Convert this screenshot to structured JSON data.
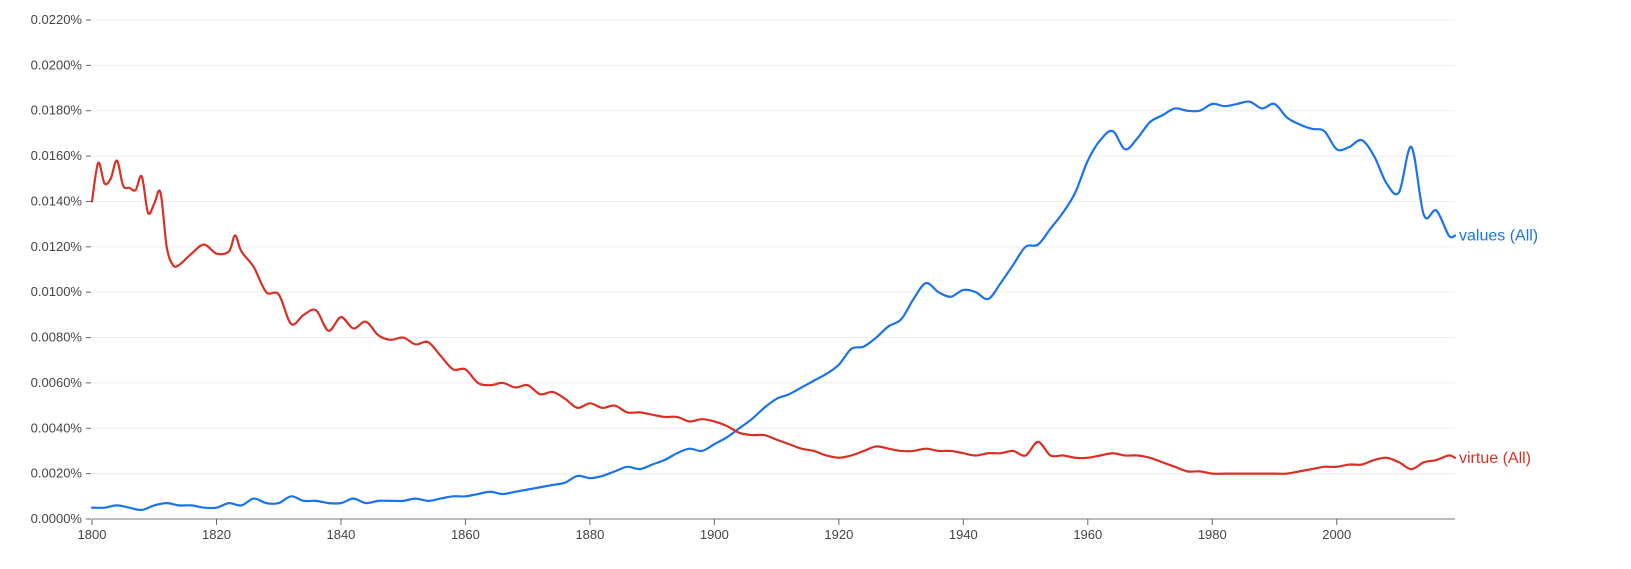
{
  "chart_data": {
    "type": "line",
    "title": "",
    "xlabel": "",
    "ylabel": "",
    "x_ticks": [
      1800,
      1820,
      1840,
      1860,
      1880,
      1900,
      1920,
      1940,
      1960,
      1980,
      2000
    ],
    "y_ticks": [
      "0.0000%",
      "0.0020%",
      "0.0040%",
      "0.0060%",
      "0.0080%",
      "0.0100%",
      "0.0120%",
      "0.0140%",
      "0.0160%",
      "0.0180%",
      "0.0200%",
      "0.0220%"
    ],
    "xlim": [
      1800,
      2019
    ],
    "ylim": [
      0,
      0.022
    ],
    "grid": true,
    "legend": "inline labels at line ends",
    "series": [
      {
        "name": "values (All)",
        "color": "#1a73e8",
        "points": [
          [
            1800,
            0.0005
          ],
          [
            1802,
            0.0005
          ],
          [
            1804,
            0.0006
          ],
          [
            1806,
            0.0005
          ],
          [
            1808,
            0.0004
          ],
          [
            1810,
            0.0006
          ],
          [
            1812,
            0.0007
          ],
          [
            1814,
            0.0006
          ],
          [
            1816,
            0.0006
          ],
          [
            1818,
            0.0005
          ],
          [
            1820,
            0.0005
          ],
          [
            1822,
            0.0007
          ],
          [
            1824,
            0.0006
          ],
          [
            1826,
            0.0009
          ],
          [
            1828,
            0.0007
          ],
          [
            1830,
            0.0007
          ],
          [
            1832,
            0.001
          ],
          [
            1834,
            0.0008
          ],
          [
            1836,
            0.0008
          ],
          [
            1838,
            0.0007
          ],
          [
            1840,
            0.0007
          ],
          [
            1842,
            0.0009
          ],
          [
            1844,
            0.0007
          ],
          [
            1846,
            0.0008
          ],
          [
            1848,
            0.0008
          ],
          [
            1850,
            0.0008
          ],
          [
            1852,
            0.0009
          ],
          [
            1854,
            0.0008
          ],
          [
            1856,
            0.0009
          ],
          [
            1858,
            0.001
          ],
          [
            1860,
            0.001
          ],
          [
            1862,
            0.0011
          ],
          [
            1864,
            0.0012
          ],
          [
            1866,
            0.0011
          ],
          [
            1868,
            0.0012
          ],
          [
            1870,
            0.0013
          ],
          [
            1872,
            0.0014
          ],
          [
            1874,
            0.0015
          ],
          [
            1876,
            0.0016
          ],
          [
            1878,
            0.0019
          ],
          [
            1880,
            0.0018
          ],
          [
            1882,
            0.0019
          ],
          [
            1884,
            0.0021
          ],
          [
            1886,
            0.0023
          ],
          [
            1888,
            0.0022
          ],
          [
            1890,
            0.0024
          ],
          [
            1892,
            0.0026
          ],
          [
            1894,
            0.0029
          ],
          [
            1896,
            0.0031
          ],
          [
            1898,
            0.003
          ],
          [
            1900,
            0.0033
          ],
          [
            1902,
            0.0036
          ],
          [
            1904,
            0.004
          ],
          [
            1906,
            0.0044
          ],
          [
            1908,
            0.0049
          ],
          [
            1910,
            0.0053
          ],
          [
            1912,
            0.0055
          ],
          [
            1914,
            0.0058
          ],
          [
            1916,
            0.0061
          ],
          [
            1918,
            0.0064
          ],
          [
            1920,
            0.0068
          ],
          [
            1922,
            0.0075
          ],
          [
            1924,
            0.0076
          ],
          [
            1926,
            0.008
          ],
          [
            1928,
            0.0085
          ],
          [
            1930,
            0.0088
          ],
          [
            1932,
            0.0097
          ],
          [
            1934,
            0.0104
          ],
          [
            1936,
            0.01
          ],
          [
            1938,
            0.0098
          ],
          [
            1940,
            0.0101
          ],
          [
            1942,
            0.01
          ],
          [
            1944,
            0.0097
          ],
          [
            1946,
            0.0104
          ],
          [
            1948,
            0.0112
          ],
          [
            1950,
            0.012
          ],
          [
            1952,
            0.0121
          ],
          [
            1954,
            0.0128
          ],
          [
            1956,
            0.0135
          ],
          [
            1958,
            0.0144
          ],
          [
            1960,
            0.0158
          ],
          [
            1962,
            0.0167
          ],
          [
            1964,
            0.0171
          ],
          [
            1966,
            0.0163
          ],
          [
            1968,
            0.0168
          ],
          [
            1970,
            0.0175
          ],
          [
            1972,
            0.0178
          ],
          [
            1974,
            0.0181
          ],
          [
            1976,
            0.018
          ],
          [
            1978,
            0.018
          ],
          [
            1980,
            0.0183
          ],
          [
            1982,
            0.0182
          ],
          [
            1984,
            0.0183
          ],
          [
            1986,
            0.0184
          ],
          [
            1988,
            0.0181
          ],
          [
            1990,
            0.0183
          ],
          [
            1992,
            0.0177
          ],
          [
            1994,
            0.0174
          ],
          [
            1996,
            0.0172
          ],
          [
            1998,
            0.0171
          ],
          [
            2000,
            0.0163
          ],
          [
            2002,
            0.0164
          ],
          [
            2004,
            0.0167
          ],
          [
            2006,
            0.016
          ],
          [
            2008,
            0.0148
          ],
          [
            2010,
            0.0144
          ],
          [
            2012,
            0.0164
          ],
          [
            2014,
            0.0134
          ],
          [
            2016,
            0.0136
          ],
          [
            2018,
            0.0125
          ],
          [
            2019,
            0.0125
          ]
        ]
      },
      {
        "name": "virtue (All)",
        "color": "#d93025",
        "points": [
          [
            1800,
            0.014
          ],
          [
            1801,
            0.0157
          ],
          [
            1802,
            0.0148
          ],
          [
            1803,
            0.015
          ],
          [
            1804,
            0.0158
          ],
          [
            1805,
            0.0147
          ],
          [
            1806,
            0.0146
          ],
          [
            1807,
            0.0145
          ],
          [
            1808,
            0.0151
          ],
          [
            1809,
            0.0135
          ],
          [
            1810,
            0.0139
          ],
          [
            1811,
            0.0144
          ],
          [
            1812,
            0.012
          ],
          [
            1813,
            0.0112
          ],
          [
            1814,
            0.0112
          ],
          [
            1816,
            0.0117
          ],
          [
            1818,
            0.0121
          ],
          [
            1820,
            0.0117
          ],
          [
            1822,
            0.0118
          ],
          [
            1823,
            0.0125
          ],
          [
            1824,
            0.0118
          ],
          [
            1826,
            0.0111
          ],
          [
            1828,
            0.01
          ],
          [
            1830,
            0.0099
          ],
          [
            1832,
            0.0086
          ],
          [
            1834,
            0.009
          ],
          [
            1836,
            0.0092
          ],
          [
            1838,
            0.0083
          ],
          [
            1840,
            0.0089
          ],
          [
            1842,
            0.0084
          ],
          [
            1844,
            0.0087
          ],
          [
            1846,
            0.0081
          ],
          [
            1848,
            0.0079
          ],
          [
            1850,
            0.008
          ],
          [
            1852,
            0.0077
          ],
          [
            1854,
            0.0078
          ],
          [
            1856,
            0.0072
          ],
          [
            1858,
            0.0066
          ],
          [
            1860,
            0.0066
          ],
          [
            1862,
            0.006
          ],
          [
            1864,
            0.0059
          ],
          [
            1866,
            0.006
          ],
          [
            1868,
            0.0058
          ],
          [
            1870,
            0.0059
          ],
          [
            1872,
            0.0055
          ],
          [
            1874,
            0.0056
          ],
          [
            1876,
            0.0053
          ],
          [
            1878,
            0.0049
          ],
          [
            1880,
            0.0051
          ],
          [
            1882,
            0.0049
          ],
          [
            1884,
            0.005
          ],
          [
            1886,
            0.0047
          ],
          [
            1888,
            0.0047
          ],
          [
            1890,
            0.0046
          ],
          [
            1892,
            0.0045
          ],
          [
            1894,
            0.0045
          ],
          [
            1896,
            0.0043
          ],
          [
            1898,
            0.0044
          ],
          [
            1900,
            0.0043
          ],
          [
            1902,
            0.0041
          ],
          [
            1904,
            0.0038
          ],
          [
            1906,
            0.0037
          ],
          [
            1908,
            0.0037
          ],
          [
            1910,
            0.0035
          ],
          [
            1912,
            0.0033
          ],
          [
            1914,
            0.0031
          ],
          [
            1916,
            0.003
          ],
          [
            1918,
            0.0028
          ],
          [
            1920,
            0.0027
          ],
          [
            1922,
            0.0028
          ],
          [
            1924,
            0.003
          ],
          [
            1926,
            0.0032
          ],
          [
            1928,
            0.0031
          ],
          [
            1930,
            0.003
          ],
          [
            1932,
            0.003
          ],
          [
            1934,
            0.0031
          ],
          [
            1936,
            0.003
          ],
          [
            1938,
            0.003
          ],
          [
            1940,
            0.0029
          ],
          [
            1942,
            0.0028
          ],
          [
            1944,
            0.0029
          ],
          [
            1946,
            0.0029
          ],
          [
            1948,
            0.003
          ],
          [
            1950,
            0.0028
          ],
          [
            1952,
            0.0034
          ],
          [
            1954,
            0.0028
          ],
          [
            1956,
            0.0028
          ],
          [
            1958,
            0.0027
          ],
          [
            1960,
            0.0027
          ],
          [
            1962,
            0.0028
          ],
          [
            1964,
            0.0029
          ],
          [
            1966,
            0.0028
          ],
          [
            1968,
            0.0028
          ],
          [
            1970,
            0.0027
          ],
          [
            1972,
            0.0025
          ],
          [
            1974,
            0.0023
          ],
          [
            1976,
            0.0021
          ],
          [
            1978,
            0.0021
          ],
          [
            1980,
            0.002
          ],
          [
            1982,
            0.002
          ],
          [
            1984,
            0.002
          ],
          [
            1986,
            0.002
          ],
          [
            1988,
            0.002
          ],
          [
            1990,
            0.002
          ],
          [
            1992,
            0.002
          ],
          [
            1994,
            0.0021
          ],
          [
            1996,
            0.0022
          ],
          [
            1998,
            0.0023
          ],
          [
            2000,
            0.0023
          ],
          [
            2002,
            0.0024
          ],
          [
            2004,
            0.0024
          ],
          [
            2006,
            0.0026
          ],
          [
            2008,
            0.0027
          ],
          [
            2010,
            0.0025
          ],
          [
            2012,
            0.0022
          ],
          [
            2014,
            0.0025
          ],
          [
            2016,
            0.0026
          ],
          [
            2018,
            0.0028
          ],
          [
            2019,
            0.0027
          ]
        ]
      }
    ]
  }
}
